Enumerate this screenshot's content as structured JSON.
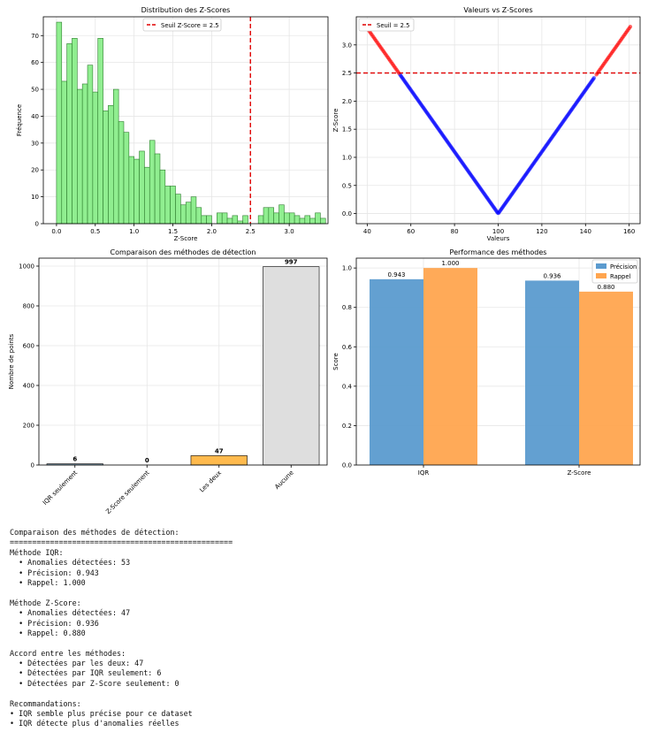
{
  "chart_data": [
    {
      "type": "bar",
      "title": "Distribution des Z-Scores",
      "xlabel": "Z-Score",
      "ylabel": "Fréquence",
      "xlim": [
        -0.17,
        3.5
      ],
      "ylim": [
        0,
        77
      ],
      "xticks": [
        "0.0",
        "0.5",
        "1.0",
        "1.5",
        "2.0",
        "2.5",
        "3.0"
      ],
      "yticks": [
        "0",
        "10",
        "20",
        "30",
        "40",
        "50",
        "60",
        "70"
      ],
      "bin_start": 0.0,
      "bin_width": 0.0667,
      "values": [
        75,
        53,
        67,
        69,
        50,
        52,
        59,
        49,
        69,
        42,
        44,
        50,
        38,
        34,
        25,
        24,
        27,
        21,
        31,
        26,
        20,
        14,
        14,
        11,
        7,
        8,
        10,
        6,
        3,
        3,
        0,
        4,
        4,
        2,
        3,
        1,
        3,
        0,
        0,
        3,
        6,
        6,
        4,
        7,
        4,
        4,
        3,
        2,
        3,
        2,
        4,
        2
      ],
      "color": "#90ee90",
      "threshold": 2.5,
      "legend": [
        "Seuil Z-Score = 2.5"
      ],
      "legend_position": "top-center",
      "grid": true
    },
    {
      "type": "scatter",
      "title": "Valeurs vs Z-Scores",
      "xlabel": "Valeurs",
      "ylabel": "Z-Score",
      "xlim": [
        35,
        165
      ],
      "ylim": [
        -0.18,
        3.5
      ],
      "xticks": [
        "40",
        "60",
        "80",
        "100",
        "120",
        "140",
        "160"
      ],
      "yticks": [
        "0.0",
        "0.5",
        "1.0",
        "1.5",
        "2.0",
        "2.5",
        "3.0"
      ],
      "center_value": 100,
      "std": 18.2,
      "threshold": 2.5,
      "normal_color": "#0000ff",
      "outlier_color": "#ff0000",
      "outlier_x": [
        40,
        41,
        42,
        43,
        44,
        45,
        46,
        47,
        48,
        49,
        50,
        51,
        52,
        53,
        54,
        145,
        146,
        147,
        148,
        149,
        150,
        151,
        152,
        153,
        154,
        155,
        156,
        157,
        158,
        159,
        160
      ],
      "normal_x_range": [
        55,
        144
      ],
      "legend": [
        "Seuil = 2.5"
      ],
      "legend_position": "top-left",
      "grid": true
    },
    {
      "type": "bar",
      "title": "Comparaison des méthodes de détection",
      "xlabel": "",
      "ylabel": "Nombre de points",
      "categories": [
        "IQR seulement",
        "Z-Score seulement",
        "Les deux",
        "Aucune"
      ],
      "values": [
        6,
        0,
        47,
        997
      ],
      "value_labels": [
        "6",
        "0",
        "47",
        "997"
      ],
      "colors": [
        "#87a9c2",
        "#ffa8a8",
        "#ffba4d",
        "#dedede"
      ],
      "ylim": [
        0,
        1040
      ],
      "yticks": [
        "0",
        "200",
        "400",
        "600",
        "800",
        "1000"
      ],
      "grid": true
    },
    {
      "type": "bar",
      "title": "Performance des méthodes",
      "xlabel": "",
      "ylabel": "Score",
      "categories": [
        "IQR",
        "Z-Score"
      ],
      "series": [
        {
          "name": "Précision",
          "values": [
            0.943,
            0.936
          ],
          "labels": [
            "0.943",
            "0.936"
          ],
          "color": "#5b9bcf"
        },
        {
          "name": "Rappel",
          "values": [
            1.0,
            0.88
          ],
          "labels": [
            "1.000",
            "0.880"
          ],
          "color": "#ffa54f"
        }
      ],
      "ylim": [
        0,
        1.05
      ],
      "yticks": [
        "0.0",
        "0.2",
        "0.4",
        "0.6",
        "0.8",
        "1.0"
      ],
      "legend_position": "top-right",
      "grid": true
    }
  ],
  "console_lines": [
    "Comparaison des méthodes de détection:",
    "==================================================",
    "Méthode IQR:",
    "  • Anomalies détectées: 53",
    "  • Précision: 0.943",
    "  • Rappel: 1.000",
    "",
    "Méthode Z-Score:",
    "  • Anomalies détectées: 47",
    "  • Précision: 0.936",
    "  • Rappel: 0.880",
    "",
    "Accord entre les méthodes:",
    "  • Détectées par les deux: 47",
    "  • Détectées par IQR seulement: 6",
    "  • Détectées par Z-Score seulement: 0",
    "",
    "Recommandations:",
    "• IQR semble plus précise pour ce dataset",
    "• IQR détecte plus d'anomalies réelles"
  ]
}
